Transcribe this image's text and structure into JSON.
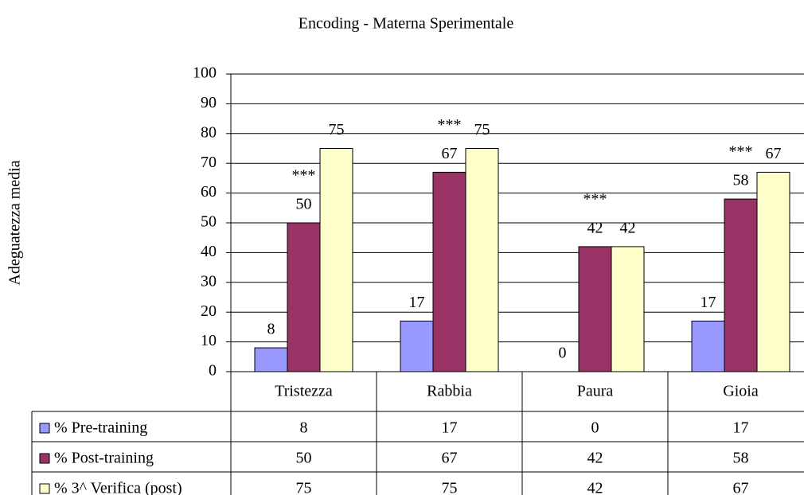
{
  "chart_data": {
    "type": "bar",
    "title": "Encoding - Materna Sperimentale",
    "y_label": "Adeguatezza media",
    "categories": [
      "Tristezza",
      "Rabbia",
      "Paura",
      "Gioia"
    ],
    "series": [
      {
        "name": "% Pre-training",
        "color": "#9999ff",
        "values": [
          8,
          17,
          0,
          17
        ]
      },
      {
        "name": "% Post-training",
        "color": "#993366",
        "values": [
          50,
          67,
          42,
          58
        ]
      },
      {
        "name": "% 3^ Verifica (post)",
        "color": "#ffffcc",
        "values": [
          75,
          75,
          42,
          67
        ]
      }
    ],
    "annotations": [
      "***",
      "***",
      "***",
      "***"
    ],
    "ylim": [
      0,
      100
    ],
    "yticks": [
      0,
      10,
      20,
      30,
      40,
      50,
      60,
      70,
      80,
      90,
      100
    ],
    "grid": true,
    "data_table": true
  }
}
